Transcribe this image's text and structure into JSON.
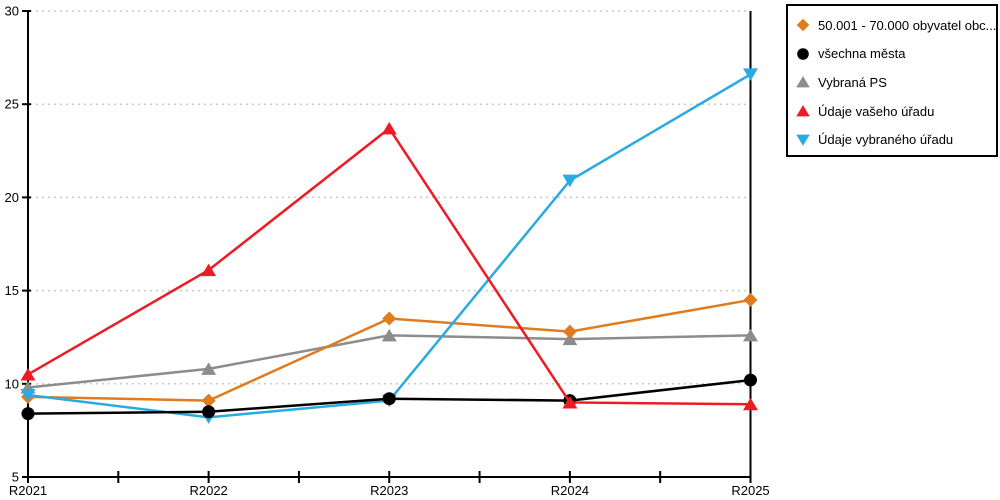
{
  "chart_data": {
    "type": "line",
    "title": "",
    "xlabel": "",
    "ylabel": "",
    "categories": [
      "R2021",
      "R2022",
      "R2023",
      "R2024",
      "R2025"
    ],
    "series": [
      {
        "name": "50.001 - 70.000 obyvatel obc...",
        "color": "#E07B1E",
        "marker": "diamond",
        "values": [
          9.3,
          9.1,
          13.5,
          12.8,
          14.5
        ]
      },
      {
        "name": "všechna města",
        "color": "#000000",
        "marker": "circle",
        "values": [
          8.4,
          8.5,
          9.2,
          9.1,
          10.2
        ]
      },
      {
        "name": "Vybraná PS",
        "color": "#8C8C8C",
        "marker": "triangle-up",
        "values": [
          9.8,
          10.8,
          12.6,
          12.4,
          12.6
        ]
      },
      {
        "name": "Údaje vašeho úřadu",
        "color": "#EC1C24",
        "marker": "triangle-up",
        "values": [
          10.5,
          16.1,
          23.7,
          9.0,
          8.9
        ]
      },
      {
        "name": "Údaje vybraného úřadu",
        "color": "#29ABE2",
        "marker": "triangle-down",
        "values": [
          9.4,
          8.2,
          9.1,
          20.9,
          26.6
        ]
      }
    ],
    "ylim": [
      5,
      30
    ],
    "yticks": [
      5,
      10,
      15,
      20,
      25,
      30
    ],
    "y_tick_labels": [
      "5",
      "10",
      "15",
      "20",
      "25",
      "30"
    ],
    "x_tick_labels": [
      "R2021",
      "R2022",
      "R2023",
      "R2024",
      "R2025"
    ],
    "grid": "horizontal-dotted",
    "grid_color": "#c9c9c9",
    "axis_color": "#000000",
    "background_color": "#ffffff",
    "legend_position": "top-right",
    "draw_order": [
      2,
      0,
      4,
      1,
      3
    ]
  }
}
